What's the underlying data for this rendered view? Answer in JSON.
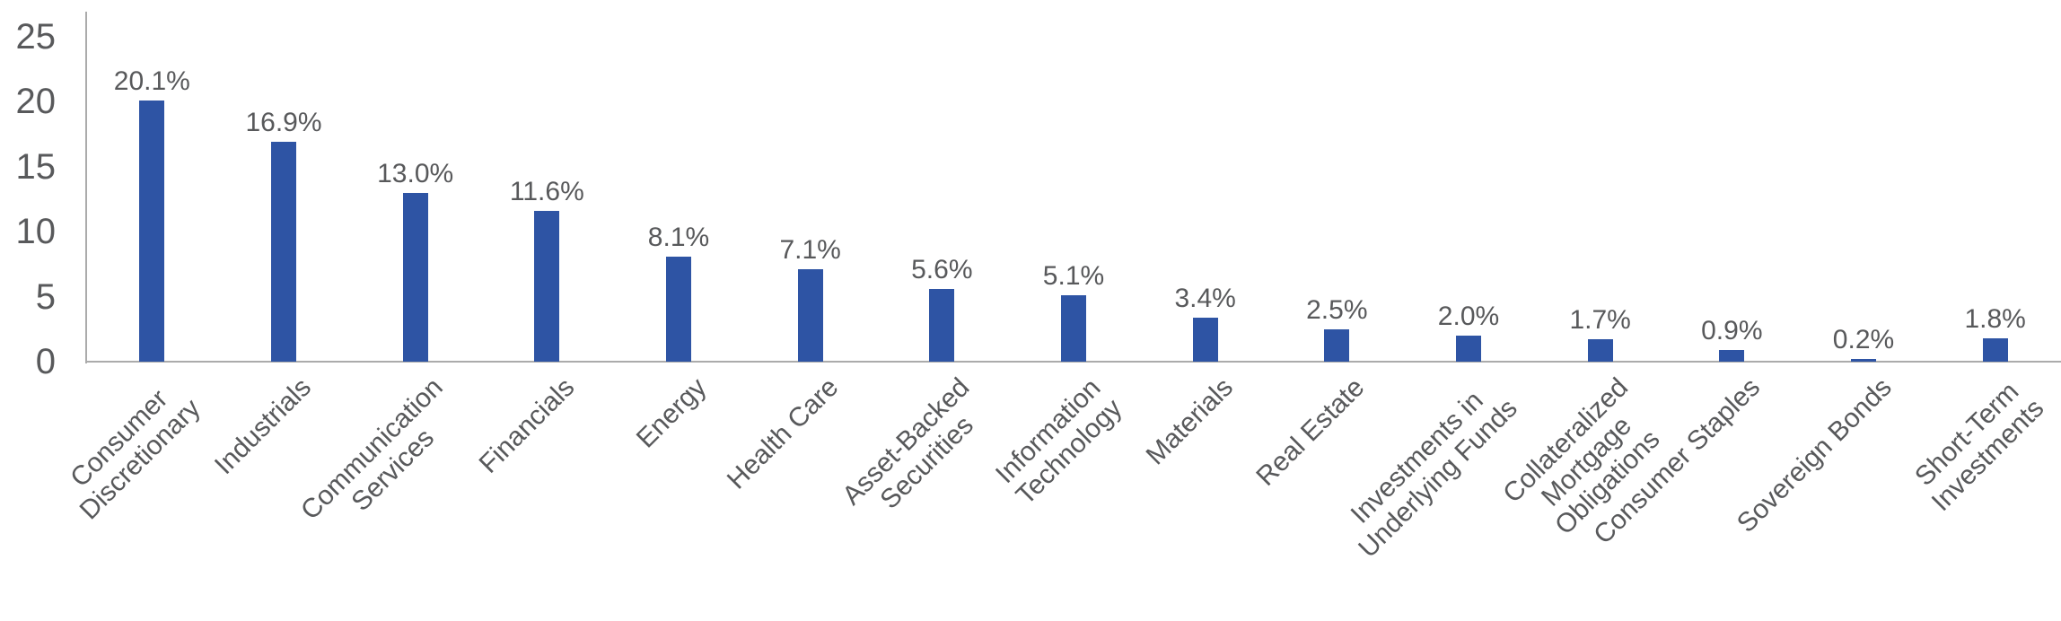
{
  "chart_data": {
    "type": "bar",
    "title": "",
    "xlabel": "",
    "ylabel": "",
    "ylim": [
      0,
      25
    ],
    "yticks": [
      0,
      5,
      10,
      15,
      20,
      25
    ],
    "ytick_labels": [
      "0",
      "5",
      "10",
      "15",
      "20",
      "25"
    ],
    "grid": false,
    "legend": false,
    "categories": [
      "Consumer Discretionary",
      "Industrials",
      "Communication Services",
      "Financials",
      "Energy",
      "Health Care",
      "Asset-Backed Securities",
      "Information Technology",
      "Materials",
      "Real Estate",
      "Investments in Underlying Funds",
      "Collateralized Mortgage Obligations",
      "Consumer Staples",
      "Sovereign Bonds",
      "Short-Term Investments"
    ],
    "category_lines": [
      [
        "Consumer",
        "Discretionary"
      ],
      [
        "Industrials"
      ],
      [
        "Communication",
        "Services"
      ],
      [
        "Financials"
      ],
      [
        "Energy"
      ],
      [
        "Health Care"
      ],
      [
        "Asset-Backed",
        "Securities"
      ],
      [
        "Information",
        "Technology"
      ],
      [
        "Materials"
      ],
      [
        "Real Estate"
      ],
      [
        "Investments in",
        "Underlying Funds"
      ],
      [
        "Collateralized",
        "Mortgage",
        "Obligations"
      ],
      [
        "Consumer Staples"
      ],
      [
        "Sovereign Bonds"
      ],
      [
        "Short-Term",
        "Investments"
      ]
    ],
    "values": [
      20.1,
      16.9,
      13.0,
      11.6,
      8.1,
      7.1,
      5.6,
      5.1,
      3.4,
      2.5,
      2.0,
      1.7,
      0.9,
      0.2,
      1.8
    ],
    "value_labels": [
      "20.1%",
      "16.9%",
      "13.0%",
      "11.6%",
      "8.1%",
      "7.1%",
      "5.6%",
      "5.1%",
      "3.4%",
      "2.5%",
      "2.0%",
      "1.7%",
      "0.9%",
      "0.2%",
      "1.8%"
    ],
    "colors": {
      "bar": "#2E54A4",
      "axis": "#ABABAB",
      "text": "#58595B"
    }
  }
}
